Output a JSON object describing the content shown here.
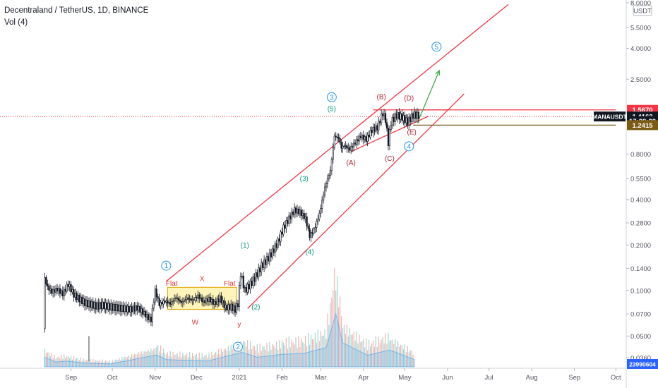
{
  "header": {
    "symbol_line": "Decentraland / TetherUS, 1D, BINANCE",
    "indicator_line": "Vol (4)"
  },
  "chart_data": {
    "type": "candlestick",
    "title": "Decentraland / TetherUS, 1D, BINANCE",
    "y_scale": "log",
    "ylim": [
      0.033,
      8.0
    ],
    "currency_badge": "USDT",
    "y_ticks": [
      "8.0000",
      "5.5000",
      "4.0000",
      "2.5000",
      "1.5000",
      "0.8000",
      "0.5500",
      "0.4000",
      "0.2800",
      "0.2000",
      "0.1400",
      "0.1000",
      "0.0700",
      "0.0500",
      "0.0360"
    ],
    "y_tick_values": [
      8.0,
      5.5,
      4.0,
      2.5,
      1.5,
      0.8,
      0.55,
      0.4,
      0.28,
      0.2,
      0.14,
      0.1,
      0.07,
      0.05,
      0.036
    ],
    "x_ticks": [
      "Sep",
      "Oct",
      "Nov",
      "Dec",
      "2021",
      "Feb",
      "Mar",
      "Apr",
      "May",
      "Jun",
      "Jul",
      "Aug",
      "Sep",
      "Oct"
    ],
    "x_tick_days": [
      31,
      61,
      92,
      122,
      153,
      184,
      212,
      243,
      273,
      304,
      334,
      365,
      396,
      426
    ],
    "x_start_date": "2020-08-01",
    "price_labels": [
      {
        "name": "resistance",
        "text": "1.5670",
        "value": 1.567,
        "color": "#f23645"
      },
      {
        "name": "current",
        "text": "1.4163",
        "value": 1.4163,
        "color": "#131722"
      },
      {
        "name": "countdown",
        "text": "17:28:22",
        "value": 1.32,
        "color": "#131722"
      },
      {
        "name": "support",
        "text": "1.2415",
        "value": 1.2415,
        "color": "#7b5a14"
      }
    ],
    "ticker_tag": "MANAUSDT",
    "volume_label": "23990604",
    "price_path": [
      [
        12,
        0.056
      ],
      [
        13,
        0.12
      ],
      [
        15,
        0.105
      ],
      [
        18,
        0.098
      ],
      [
        22,
        0.102
      ],
      [
        26,
        0.095
      ],
      [
        30,
        0.11
      ],
      [
        34,
        0.094
      ],
      [
        38,
        0.088
      ],
      [
        42,
        0.083
      ],
      [
        46,
        0.081
      ],
      [
        50,
        0.079
      ],
      [
        55,
        0.08
      ],
      [
        60,
        0.078
      ],
      [
        65,
        0.077
      ],
      [
        70,
        0.076
      ],
      [
        75,
        0.075
      ],
      [
        80,
        0.077
      ],
      [
        84,
        0.072
      ],
      [
        88,
        0.066
      ],
      [
        90,
        0.064
      ],
      [
        93,
        0.1
      ],
      [
        96,
        0.081
      ],
      [
        100,
        0.085
      ],
      [
        104,
        0.082
      ],
      [
        108,
        0.09
      ],
      [
        112,
        0.083
      ],
      [
        116,
        0.089
      ],
      [
        120,
        0.086
      ],
      [
        124,
        0.092
      ],
      [
        128,
        0.084
      ],
      [
        132,
        0.088
      ],
      [
        136,
        0.082
      ],
      [
        140,
        0.089
      ],
      [
        144,
        0.077
      ],
      [
        148,
        0.078
      ],
      [
        151,
        0.075
      ],
      [
        153,
        0.082
      ],
      [
        155,
        0.13
      ],
      [
        158,
        0.1
      ],
      [
        162,
        0.11
      ],
      [
        166,
        0.125
      ],
      [
        170,
        0.145
      ],
      [
        174,
        0.16
      ],
      [
        178,
        0.18
      ],
      [
        182,
        0.21
      ],
      [
        186,
        0.26
      ],
      [
        190,
        0.3
      ],
      [
        194,
        0.34
      ],
      [
        198,
        0.33
      ],
      [
        202,
        0.3
      ],
      [
        205,
        0.23
      ],
      [
        208,
        0.25
      ],
      [
        212,
        0.32
      ],
      [
        216,
        0.48
      ],
      [
        220,
        0.62
      ],
      [
        223,
        1.05
      ],
      [
        226,
        1.02
      ],
      [
        228,
        0.88
      ],
      [
        230,
        0.91
      ],
      [
        234,
        0.86
      ],
      [
        238,
        0.95
      ],
      [
        242,
        1.05
      ],
      [
        246,
        1.0
      ],
      [
        250,
        1.15
      ],
      [
        254,
        1.2
      ],
      [
        258,
        1.5
      ],
      [
        260,
        1.35
      ],
      [
        262,
        0.95
      ],
      [
        264,
        1.3
      ],
      [
        268,
        1.45
      ],
      [
        272,
        1.4
      ],
      [
        276,
        1.3
      ],
      [
        280,
        1.45
      ],
      [
        284,
        1.44
      ]
    ],
    "volume_bars": [
      [
        12,
        2
      ],
      [
        20,
        1
      ],
      [
        28,
        1.2
      ],
      [
        40,
        0.8
      ],
      [
        60,
        0.6
      ],
      [
        93,
        2.5
      ],
      [
        100,
        1.5
      ],
      [
        130,
        1.2
      ],
      [
        155,
        3
      ],
      [
        166,
        2
      ],
      [
        184,
        2.6
      ],
      [
        200,
        2.8
      ],
      [
        216,
        4
      ],
      [
        220,
        8
      ],
      [
        223,
        11
      ],
      [
        228,
        5
      ],
      [
        246,
        2.4
      ],
      [
        262,
        3.5
      ],
      [
        280,
        1.5
      ]
    ],
    "annotations": [
      {
        "text": "1",
        "style": "circle",
        "color": "#2196f3",
        "day": 100,
        "price": 0.146
      },
      {
        "text": "2",
        "style": "circle",
        "color": "#2196f3",
        "day": 152,
        "price": 0.0425
      },
      {
        "text": "3",
        "style": "circle",
        "color": "#2196f3",
        "day": 220,
        "price": 1.9
      },
      {
        "text": "4",
        "style": "circle",
        "color": "#2196f3",
        "day": 276,
        "price": 0.9
      },
      {
        "text": "5",
        "style": "circle",
        "color": "#2196f3",
        "day": 296,
        "price": 4.1
      },
      {
        "text": "(1)",
        "style": "plain",
        "color": "#089981",
        "day": 157,
        "price": 0.2
      },
      {
        "text": "(2)",
        "style": "plain",
        "color": "#089981",
        "day": 165,
        "price": 0.078
      },
      {
        "text": "(3)",
        "style": "plain",
        "color": "#089981",
        "day": 200,
        "price": 0.55
      },
      {
        "text": "(4)",
        "style": "plain",
        "color": "#089981",
        "day": 204,
        "price": 0.18
      },
      {
        "text": "(5)",
        "style": "plain",
        "color": "#089981",
        "day": 220,
        "price": 1.6
      },
      {
        "text": "(A)",
        "style": "plain",
        "color": "#b22833",
        "day": 234,
        "price": 0.7
      },
      {
        "text": "(B)",
        "style": "plain",
        "color": "#b22833",
        "day": 256,
        "price": 1.92
      },
      {
        "text": "(C)",
        "style": "plain",
        "color": "#b22833",
        "day": 262,
        "price": 0.75
      },
      {
        "text": "(D)",
        "style": "plain",
        "color": "#b22833",
        "day": 276,
        "price": 1.88
      },
      {
        "text": "(E)",
        "style": "plain",
        "color": "#b22833",
        "day": 278,
        "price": 1.12
      },
      {
        "text": "Flat",
        "style": "plain",
        "color": "#e53935",
        "day": 104,
        "price": 0.112
      },
      {
        "text": "X",
        "style": "plain",
        "color": "#e53935",
        "day": 126,
        "price": 0.12
      },
      {
        "text": "Flat",
        "style": "plain",
        "color": "#e53935",
        "day": 146,
        "price": 0.112
      },
      {
        "text": "W",
        "style": "plain",
        "color": "#e53935",
        "day": 121,
        "price": 0.062
      },
      {
        "text": "y",
        "style": "plain",
        "color": "#e53935",
        "day": 153,
        "price": 0.06
      }
    ],
    "drawings": {
      "channel_upper": [
        [
          100,
          0.115
        ],
        [
          348,
          7.8
        ]
      ],
      "channel_lower": [
        [
          159,
          0.076
        ],
        [
          316,
          2.0
        ]
      ],
      "triangle_top": [
        [
          250,
          1.567
        ],
        [
          304,
          1.567
        ]
      ],
      "triangle_bottom": [
        [
          234,
          0.83
        ],
        [
          290,
          1.42
        ]
      ],
      "support_line": [
        [
          279,
          1.2415
        ],
        [
          426,
          1.2415
        ]
      ],
      "resistance_line": [
        [
          283,
          1.567
        ],
        [
          426,
          1.567
        ]
      ],
      "projection_arrow": [
        [
          282,
          1.28
        ],
        [
          298,
          2.85
        ]
      ],
      "correction_box": {
        "day_start": 101,
        "day_end": 151,
        "price_low": 0.075,
        "price_high": 0.105
      }
    }
  }
}
